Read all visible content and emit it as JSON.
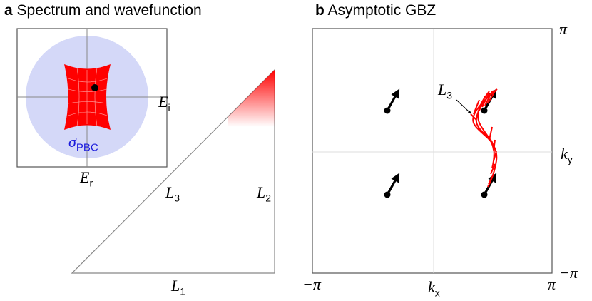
{
  "panel_a": {
    "letter": "a",
    "title": "Spectrum and wavefunction",
    "inset": {
      "x_axis_label": "E",
      "x_axis_sub": "r",
      "y_axis_label": "E",
      "y_axis_sub": "i",
      "region_label": "σ",
      "region_sub": "PBC"
    },
    "triangle": {
      "edge_1_label": "L",
      "edge_1_sub": "1",
      "edge_2_label": "L",
      "edge_2_sub": "2",
      "edge_3_label": "L",
      "edge_3_sub": "3"
    }
  },
  "panel_b": {
    "letter": "b",
    "title": "Asymptotic GBZ",
    "x_axis_label": "k",
    "x_axis_sub": "x",
    "y_axis_label": "k",
    "y_axis_sub": "y",
    "x_min_label": "−π",
    "x_max_label": "π",
    "y_min_label": "−π",
    "y_max_label": "π",
    "annotation": "L",
    "annotation_sub": "3"
  },
  "colors": {
    "spectrum_red": "#ff0000",
    "pbc_region": "#d4d8f8",
    "pbc_label": "#1a1adc",
    "arrow": "#000000"
  }
}
